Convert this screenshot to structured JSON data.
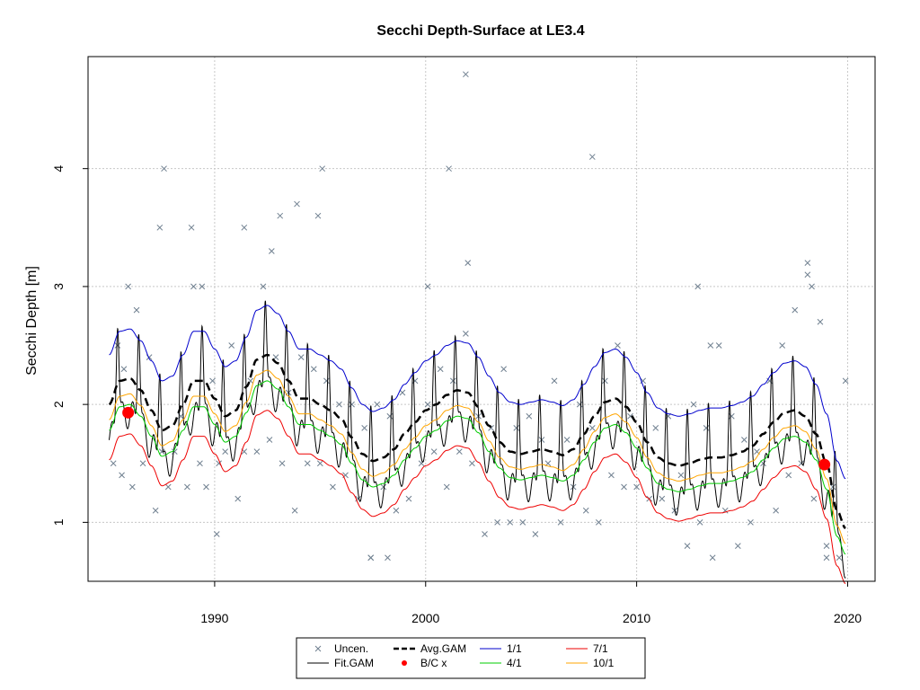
{
  "chart_data": {
    "type": "line",
    "title": "Secchi Depth-Surface at LE3.4",
    "xlabel": "",
    "ylabel": "Secchi Depth [m]",
    "xlim": [
      1984.0,
      2021.3
    ],
    "ylim": [
      0.5,
      4.95
    ],
    "x_ticks": [
      1990,
      2000,
      2010,
      2020
    ],
    "y_ticks": [
      1,
      2,
      3,
      4
    ],
    "grid": true,
    "legend_position": "bottom",
    "legend": [
      {
        "label": "Uncen.",
        "symbol": "x",
        "color": "#708090"
      },
      {
        "label": "Fit.GAM",
        "symbol": "line",
        "color": "#000000"
      },
      {
        "label": "Avg.GAM",
        "symbol": "dashed",
        "color": "#000000"
      },
      {
        "label": "B/C x",
        "symbol": "dot",
        "color": "#ff0000"
      },
      {
        "label": "1/1",
        "symbol": "line",
        "color": "#0000cd"
      },
      {
        "label": "4/1",
        "symbol": "line",
        "color": "#00cc00"
      },
      {
        "label": "7/1",
        "symbol": "line",
        "color": "#ee0000"
      },
      {
        "label": "10/1",
        "symbol": "line",
        "color": "#ffa500"
      }
    ],
    "avg_gam_knots": {
      "x": [
        1985.0,
        1985.5,
        1986.0,
        1986.5,
        1987.0,
        1987.5,
        1988.0,
        1988.5,
        1989.0,
        1989.5,
        1990.0,
        1990.5,
        1991.0,
        1991.5,
        1992.0,
        1992.5,
        1993.0,
        1993.5,
        1994.0,
        1994.5,
        1995.0,
        1995.5,
        1996.0,
        1996.5,
        1997.0,
        1997.5,
        1998.0,
        1998.5,
        1999.0,
        1999.5,
        2000.0,
        2000.5,
        2001.0,
        2001.5,
        2002.0,
        2002.5,
        2003.0,
        2003.5,
        2004.0,
        2004.5,
        2005.0,
        2005.5,
        2006.0,
        2006.5,
        2007.0,
        2007.5,
        2008.0,
        2008.5,
        2009.0,
        2009.5,
        2010.0,
        2010.5,
        2011.0,
        2011.5,
        2012.0,
        2012.5,
        2013.0,
        2013.5,
        2014.0,
        2014.5,
        2015.0,
        2015.5,
        2016.0,
        2016.5,
        2017.0,
        2017.5,
        2018.0,
        2018.5,
        2019.0,
        2019.5,
        2019.9
      ],
      "y": [
        2.0,
        2.2,
        2.22,
        2.12,
        1.95,
        1.78,
        1.82,
        2.0,
        2.2,
        2.2,
        2.05,
        1.9,
        1.95,
        2.15,
        2.38,
        2.42,
        2.35,
        2.2,
        2.05,
        2.05,
        2.0,
        1.95,
        1.88,
        1.72,
        1.58,
        1.52,
        1.55,
        1.62,
        1.75,
        1.85,
        1.95,
        2.0,
        2.08,
        2.12,
        2.1,
        1.98,
        1.82,
        1.68,
        1.6,
        1.58,
        1.6,
        1.62,
        1.6,
        1.57,
        1.62,
        1.75,
        1.9,
        2.02,
        2.05,
        1.98,
        1.85,
        1.68,
        1.55,
        1.5,
        1.48,
        1.5,
        1.53,
        1.55,
        1.55,
        1.57,
        1.6,
        1.65,
        1.75,
        1.85,
        1.93,
        1.95,
        1.9,
        1.75,
        1.5,
        1.1,
        0.95
      ]
    },
    "scenario_offsets": {
      "1/1": 0.42,
      "4/1": -0.22,
      "7/1": -0.47,
      "10/1": -0.13
    },
    "fit_gam_amplitude": 0.55,
    "fit_gam_peak_phase": 0.4,
    "uncensored_points": {
      "x": [
        1985.2,
        1985.4,
        1985.6,
        1985.9,
        1986.1,
        1986.3,
        1986.6,
        1986.9,
        1987.2,
        1987.5,
        1987.8,
        1988.1,
        1988.4,
        1988.7,
        1989.0,
        1989.3,
        1989.6,
        1989.9,
        1990.2,
        1990.5,
        1990.8,
        1991.1,
        1991.4,
        1991.7,
        1992.0,
        1992.3,
        1992.6,
        1992.9,
        1993.2,
        1993.5,
        1993.8,
        1994.1,
        1994.4,
        1994.7,
        1995.0,
        1995.3,
        1995.6,
        1995.9,
        1996.2,
        1996.5,
        1996.8,
        1997.1,
        1997.4,
        1997.7,
        1998.0,
        1998.3,
        1998.6,
        1998.9,
        1999.2,
        1999.5,
        1999.8,
        2000.1,
        2000.4,
        2000.7,
        2001.0,
        2001.3,
        2001.6,
        2001.9,
        2002.2,
        2002.5,
        2002.8,
        2003.1,
        2003.4,
        2003.7,
        2004.0,
        2004.3,
        2004.6,
        2004.9,
        2005.2,
        2005.5,
        2005.8,
        2006.1,
        2006.4,
        2006.7,
        2007.0,
        2007.3,
        2007.6,
        2007.9,
        2008.2,
        2008.5,
        2008.8,
        2009.1,
        2009.4,
        2009.7,
        2010.0,
        2010.3,
        2010.6,
        2010.9,
        2011.2,
        2011.5,
        2011.8,
        2012.1,
        2012.4,
        2012.7,
        2013.0,
        2013.3,
        2013.6,
        2013.9,
        2014.2,
        2014.5,
        2014.8,
        2015.1,
        2015.4,
        2015.7,
        2016.0,
        2016.3,
        2016.6,
        2016.9,
        2017.2,
        2017.5,
        2017.8,
        2018.1,
        2018.4,
        2018.7,
        2019.0,
        2019.3,
        2019.6,
        2019.9,
        1985.7,
        1987.4,
        1988.9,
        1991.4,
        1992.7,
        1993.1,
        1993.9,
        1994.9,
        1995.1,
        2000.1,
        2001.1,
        2001.9,
        2002.0,
        2007.9,
        2012.9,
        2013.5,
        2018.1,
        2018.3,
        1990.1,
        1989.4,
        1987.6,
        1997.4,
        1998.2,
        2019.0
      ],
      "y": [
        1.5,
        2.5,
        1.4,
        3.0,
        1.3,
        2.8,
        1.5,
        2.4,
        1.1,
        1.6,
        1.3,
        1.6,
        1.9,
        1.3,
        3.0,
        1.5,
        1.3,
        2.2,
        1.5,
        1.6,
        2.5,
        1.2,
        1.6,
        2.2,
        1.6,
        3.0,
        1.7,
        2.4,
        1.5,
        2.1,
        1.1,
        2.4,
        1.5,
        2.3,
        1.5,
        2.2,
        1.3,
        2.0,
        1.4,
        2.0,
        1.2,
        1.8,
        0.7,
        2.0,
        1.3,
        1.9,
        1.1,
        2.1,
        1.2,
        2.2,
        1.5,
        2.0,
        1.6,
        2.3,
        1.3,
        2.2,
        1.6,
        2.6,
        1.5,
        1.9,
        0.9,
        1.8,
        1.0,
        2.3,
        1.0,
        1.8,
        1.0,
        1.9,
        0.9,
        1.7,
        1.5,
        2.2,
        1.0,
        1.7,
        1.3,
        2.0,
        1.1,
        1.8,
        1.0,
        2.2,
        1.4,
        2.5,
        1.3,
        1.9,
        1.3,
        2.2,
        1.2,
        1.8,
        1.2,
        1.9,
        1.1,
        1.4,
        0.8,
        2.0,
        1.0,
        1.8,
        0.7,
        2.5,
        1.1,
        1.9,
        0.8,
        1.7,
        1.0,
        1.6,
        1.5,
        2.2,
        1.1,
        2.5,
        1.4,
        2.8,
        1.5,
        3.1,
        1.2,
        2.7,
        0.8,
        1.3,
        0.7,
        2.2,
        2.3,
        3.5,
        3.5,
        3.5,
        3.3,
        3.6,
        3.7,
        3.6,
        4.0,
        3.0,
        4.0,
        4.8,
        3.2,
        4.1,
        3.0,
        2.5,
        3.2,
        3.0,
        0.9,
        3.0,
        4.0,
        0.7,
        0.7,
        0.7
      ]
    },
    "bc_points": {
      "x": [
        1985.9,
        2018.9
      ],
      "y": [
        1.93,
        1.49
      ]
    }
  }
}
